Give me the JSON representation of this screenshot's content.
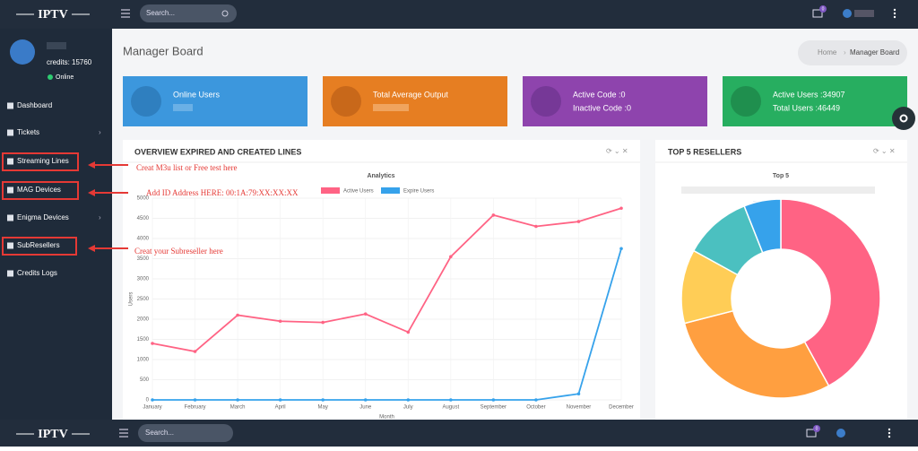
{
  "header": {
    "brand": "IPTV",
    "search_placeholder": "Search...",
    "notifications": "0"
  },
  "sidebar": {
    "credits": "credits: 15760",
    "status": "Online",
    "menu": [
      "Dashboard",
      "Tickets",
      "Streaming Lines",
      "MAG Devices",
      "Enigma Devices",
      "SubResellers",
      "Credits Logs"
    ]
  },
  "annotations": [
    "Creat M3u list or Free test here",
    "Add ID Address HERE: 00:1A:79:XX:XX:XX",
    "Creat your  Subreseller here"
  ],
  "page": {
    "title": "Manager Board",
    "breadcrumb": [
      "Home",
      "Manager Board"
    ]
  },
  "cards": [
    {
      "lines": [
        "Online Users"
      ]
    },
    {
      "lines": [
        "Total Average Output"
      ]
    },
    {
      "lines": [
        "Active Code :0",
        "Inactive Code :0"
      ]
    },
    {
      "lines": [
        "Active Users :34907",
        "Total Users :46449"
      ]
    }
  ],
  "panels": [
    "OVERVIEW EXPIRED AND CREATED LINES",
    "TOP 5 RESELLERS"
  ],
  "chart_data": [
    {
      "type": "line",
      "title": "Analytics",
      "x_label": "Month",
      "y_label": "Users",
      "categories": [
        "January",
        "February",
        "March",
        "April",
        "May",
        "June",
        "July",
        "August",
        "September",
        "October",
        "November",
        "December"
      ],
      "series": [
        {
          "name": "Active Users",
          "color": "#ff6384",
          "values": [
            1400,
            1200,
            2100,
            1950,
            1920,
            2130,
            1680,
            3550,
            4580,
            4300,
            4420,
            4750
          ]
        },
        {
          "name": "Expire Users",
          "color": "#36a2eb",
          "values": [
            0,
            0,
            0,
            0,
            0,
            0,
            0,
            0,
            0,
            0,
            150,
            3750
          ]
        }
      ],
      "ylim": [
        0,
        5000
      ],
      "yticks": [
        0,
        500,
        1000,
        1500,
        2000,
        2500,
        3000,
        3500,
        4000,
        4500,
        5000
      ],
      "grid": true,
      "legend": "top"
    },
    {
      "type": "pie",
      "title": "Top 5",
      "donut": true,
      "values": [
        42,
        29,
        12,
        11,
        6
      ],
      "colors": [
        "#ff6384",
        "#ff9f40",
        "#ffcd56",
        "#4bc0c0",
        "#36a2eb"
      ]
    }
  ]
}
